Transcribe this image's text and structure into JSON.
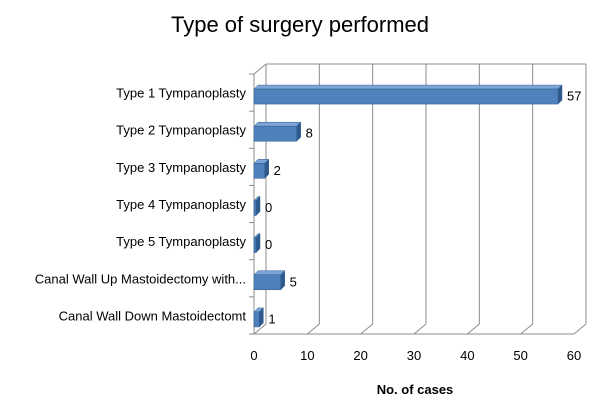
{
  "chart_data": {
    "type": "bar",
    "orientation": "horizontal",
    "title": "Type of surgery performed",
    "xlabel": "No. of cases",
    "ylabel": "",
    "categories": [
      "Type 1 Tympanoplasty",
      "Type 2 Tympanoplasty",
      "Type 3 Tympanoplasty",
      "Type 4 Tympanoplasty",
      "Type 5 Tympanoplasty",
      "Canal Wall Up Mastoidectomy with...",
      "Canal Wall Down Mastoidectomt"
    ],
    "values": [
      57,
      8,
      2,
      0,
      0,
      5,
      1
    ],
    "xlim": [
      0,
      60
    ],
    "xticks": [
      0,
      10,
      20,
      30,
      40,
      50,
      60
    ],
    "grid": true,
    "legend": "none",
    "style": "3d",
    "colors": {
      "bar_front": "#4F81BD",
      "bar_top": "#7DA4D6",
      "bar_side": "#2E5A8E",
      "gridline": "#8C8C8C",
      "axis": "#8C8C8C"
    }
  }
}
